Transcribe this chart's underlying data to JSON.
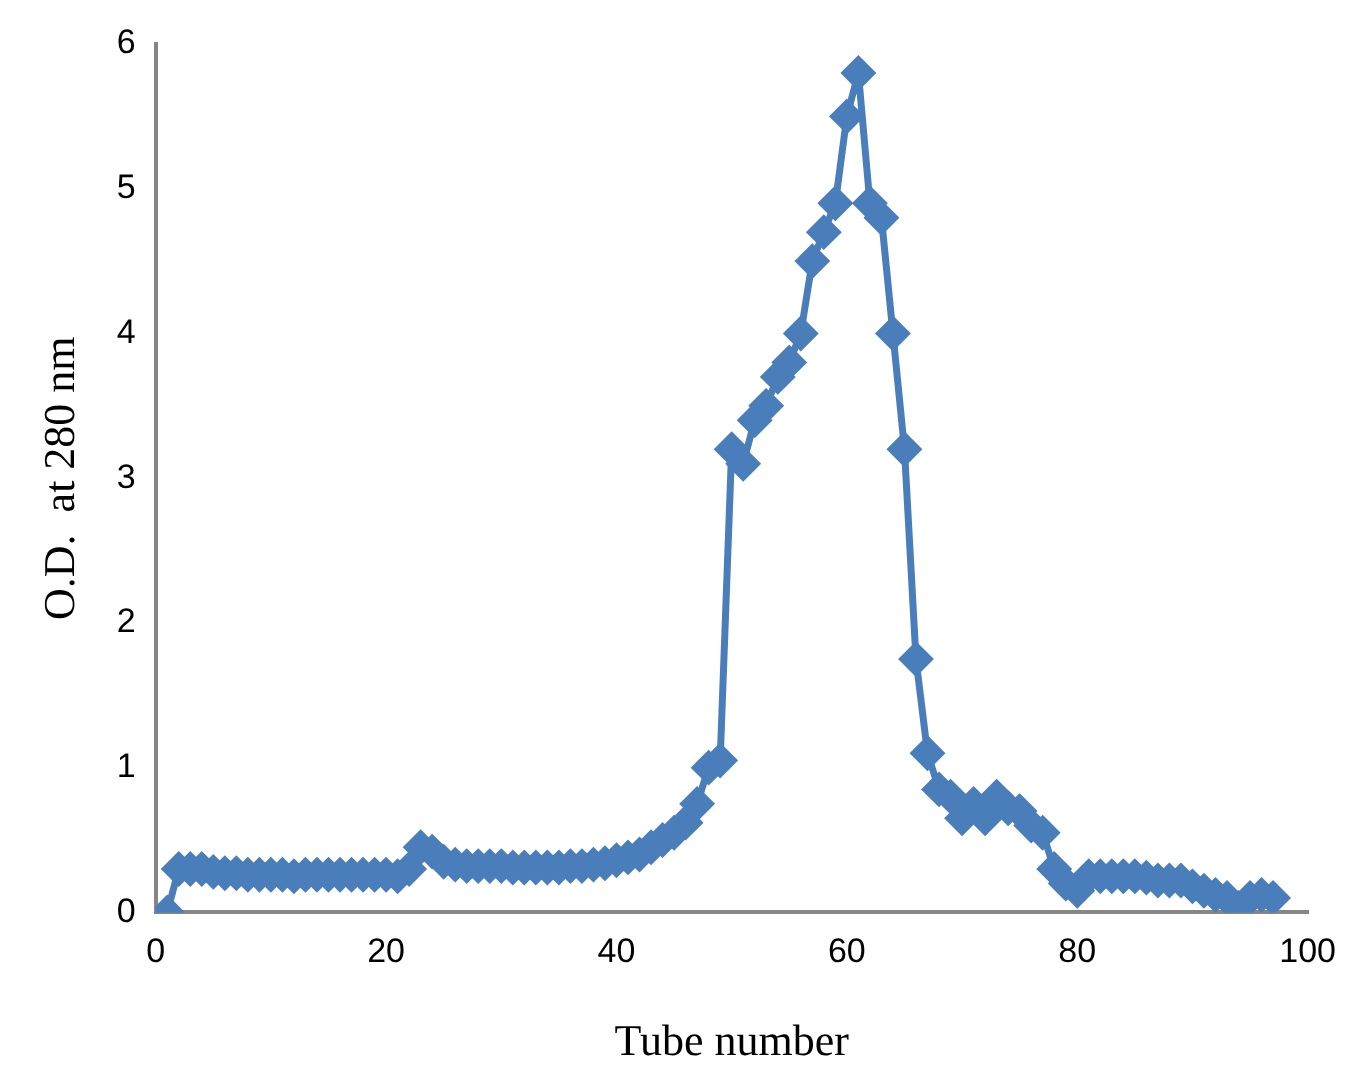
{
  "chart_data": {
    "type": "line",
    "xlabel": "Tube number",
    "ylabel": "O.D.  at 280 nm",
    "x": [
      1,
      2,
      3,
      4,
      5,
      6,
      7,
      8,
      9,
      10,
      11,
      12,
      13,
      14,
      15,
      16,
      17,
      18,
      19,
      20,
      21,
      22,
      23,
      24,
      25,
      26,
      27,
      28,
      29,
      30,
      31,
      32,
      33,
      34,
      35,
      36,
      37,
      38,
      39,
      40,
      41,
      42,
      43,
      44,
      45,
      46,
      47,
      48,
      49,
      50,
      51,
      52,
      53,
      54,
      55,
      56,
      57,
      58,
      59,
      60,
      61,
      62,
      63,
      64,
      65,
      66,
      67,
      68,
      69,
      70,
      71,
      72,
      73,
      74,
      75,
      76,
      77,
      78,
      79,
      80,
      81,
      82,
      83,
      84,
      85,
      86,
      87,
      88,
      89,
      90,
      91,
      92,
      93,
      94,
      95,
      96,
      97
    ],
    "series": [
      {
        "color": "#4a7ebb",
        "values": [
          0,
          0.3,
          0.3,
          0.3,
          0.28,
          0.27,
          0.27,
          0.26,
          0.26,
          0.26,
          0.26,
          0.25,
          0.26,
          0.26,
          0.26,
          0.26,
          0.26,
          0.26,
          0.26,
          0.26,
          0.25,
          0.3,
          0.45,
          0.42,
          0.35,
          0.33,
          0.32,
          0.32,
          0.32,
          0.32,
          0.31,
          0.31,
          0.31,
          0.31,
          0.31,
          0.32,
          0.32,
          0.33,
          0.34,
          0.36,
          0.38,
          0.4,
          0.45,
          0.5,
          0.55,
          0.62,
          0.75,
          1.0,
          1.05,
          3.2,
          3.1,
          3.4,
          3.5,
          3.7,
          3.8,
          4.0,
          4.5,
          4.7,
          4.9,
          5.5,
          5.8,
          4.9,
          4.8,
          4.0,
          3.2,
          1.75,
          1.1,
          0.85,
          0.8,
          0.65,
          0.75,
          0.65,
          0.8,
          0.72,
          0.7,
          0.6,
          0.55,
          0.3,
          0.2,
          0.15,
          0.25,
          0.25,
          0.25,
          0.25,
          0.25,
          0.24,
          0.22,
          0.22,
          0.22,
          0.18,
          0.15,
          0.12,
          0.1,
          0.03,
          0.1,
          0.12,
          0.1
        ]
      }
    ],
    "xlim": [
      0,
      100
    ],
    "xticks": [
      0,
      20,
      40,
      60,
      80,
      100
    ],
    "ylim": [
      0,
      6
    ],
    "yticks": [
      0,
      1,
      2,
      3,
      4,
      5,
      6
    ],
    "grid": false,
    "legend": false,
    "marker": "diamond",
    "line_style": "solid"
  }
}
